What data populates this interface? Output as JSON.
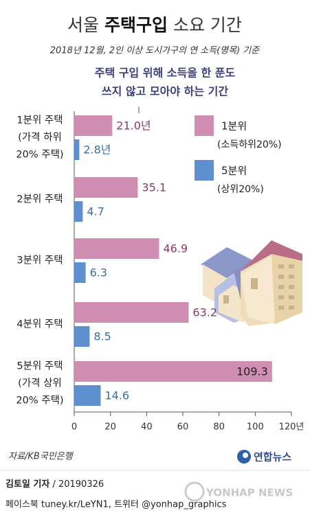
{
  "chart_data": {
    "type": "bar",
    "title": [
      "서울",
      "주택구입",
      "소요 기간"
    ],
    "subtitle": "2018년 12월,  2인 이상 도시가구의 연 소득(명목) 기준",
    "heading": [
      "주택 구입 위해 소득을 한 푼도",
      "쓰지 않고 모아야 하는 기간"
    ],
    "categories": [
      [
        "1분위 주택",
        "(가격 하위",
        "20% 주택)"
      ],
      [
        "2분위 주택"
      ],
      [
        "3분위 주택"
      ],
      [
        "4분위 주택"
      ],
      [
        "5분위 주택",
        "(가격 상위",
        "20% 주택)"
      ]
    ],
    "series": [
      {
        "name": "1분위",
        "note": "(소득하위20%)",
        "color": "#d08fb2",
        "label_color": "#8b3a6c",
        "values": [
          21.0,
          35.1,
          46.9,
          63.2,
          109.3
        ],
        "value_labels": [
          "21.0년",
          "35.1",
          "46.9",
          "63.2",
          "109.3"
        ]
      },
      {
        "name": "5분위",
        "note": "(상위20%)",
        "color": "#5f8fcf",
        "label_color": "#3b6ea8",
        "values": [
          2.8,
          4.7,
          6.3,
          8.5,
          14.6
        ],
        "value_labels": [
          "2.8년",
          "4.7",
          "6.3",
          "8.5",
          "14.6"
        ]
      }
    ],
    "xlim": [
      0,
      120
    ],
    "xticks": [
      0,
      20,
      40,
      60,
      80,
      100,
      {
        "value": 120,
        "label": "120년"
      }
    ],
    "source": "자료/KB국민은행",
    "logo": "연합뉴스",
    "reporter": "김토일 기자",
    "date": " / 20190326",
    "social": "페이스북 tuney.kr/LeYN1, 트위터 @yonhap_graphics",
    "watermark": "YONHAP NEWS"
  }
}
